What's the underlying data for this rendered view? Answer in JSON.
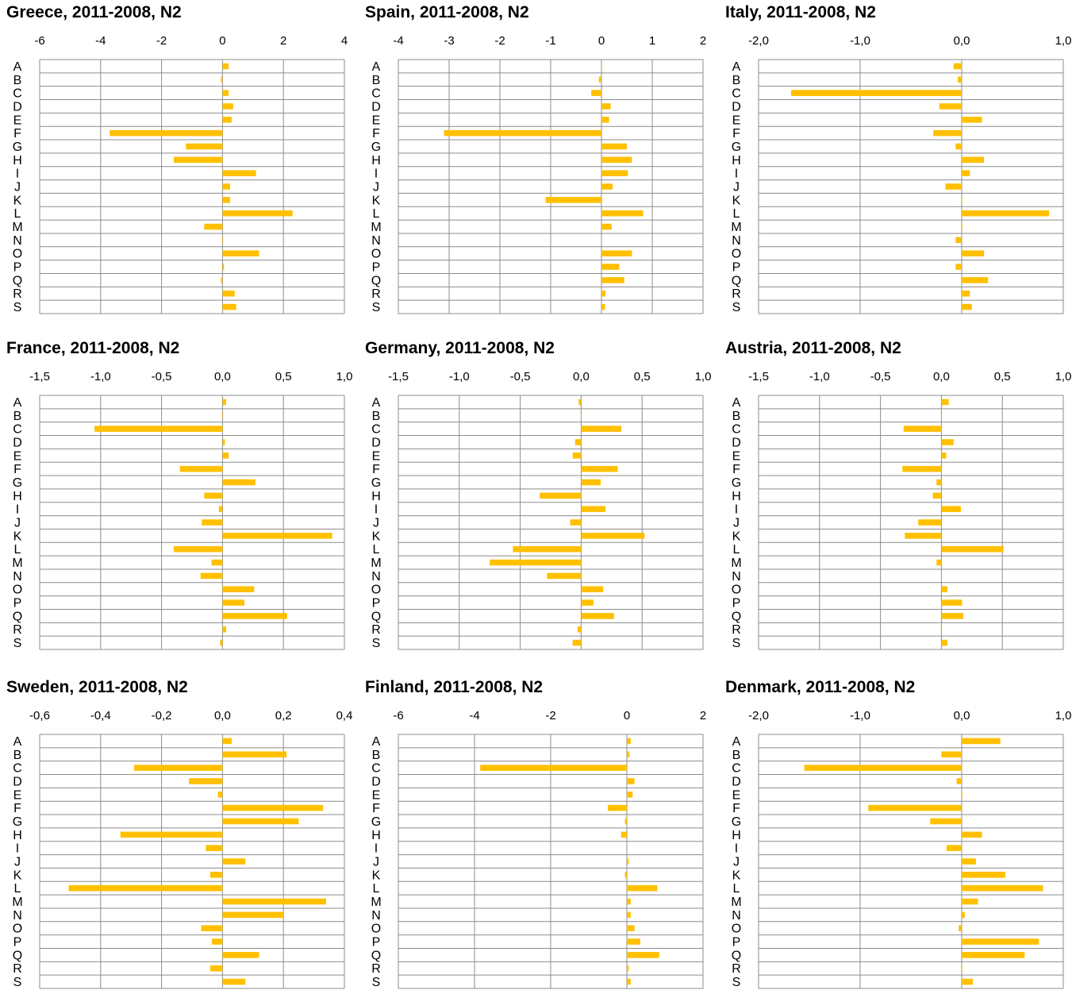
{
  "chart_data": [
    {
      "type": "bar",
      "orientation": "horizontal",
      "title": "Greece, 2011-2008, N2",
      "categories": [
        "A",
        "B",
        "C",
        "D",
        "E",
        "F",
        "G",
        "H",
        "I",
        "J",
        "K",
        "L",
        "M",
        "N",
        "O",
        "P",
        "Q",
        "R",
        "S"
      ],
      "values": [
        0.2,
        -0.05,
        0.2,
        0.35,
        0.3,
        -3.7,
        -1.2,
        -1.6,
        1.1,
        0.25,
        0.25,
        2.3,
        -0.6,
        0.0,
        1.2,
        0.05,
        -0.05,
        0.4,
        0.45
      ],
      "xlim": [
        -6,
        4
      ],
      "xticks": [
        "-6",
        "-4",
        "-2",
        "0",
        "2",
        "4"
      ],
      "color": "#FFC000"
    },
    {
      "type": "bar",
      "orientation": "horizontal",
      "title": "Spain, 2011-2008, N2",
      "categories": [
        "A",
        "B",
        "C",
        "D",
        "E",
        "F",
        "G",
        "H",
        "I",
        "J",
        "K",
        "L",
        "M",
        "N",
        "O",
        "P",
        "Q",
        "R",
        "S"
      ],
      "values": [
        0.0,
        -0.05,
        -0.2,
        0.18,
        0.15,
        -3.1,
        0.5,
        0.6,
        0.52,
        0.22,
        -1.1,
        0.82,
        0.2,
        0.0,
        0.6,
        0.35,
        0.45,
        0.08,
        0.07
      ],
      "xlim": [
        -4,
        2
      ],
      "xticks": [
        "-4",
        "-3",
        "-2",
        "-1",
        "0",
        "1",
        "2"
      ],
      "color": "#FFC000"
    },
    {
      "type": "bar",
      "orientation": "horizontal",
      "title": "Italy, 2011-2008, N2",
      "categories": [
        "A",
        "B",
        "C",
        "D",
        "E",
        "F",
        "G",
        "H",
        "I",
        "J",
        "K",
        "L",
        "M",
        "N",
        "O",
        "P",
        "Q",
        "R",
        "S"
      ],
      "values": [
        -0.08,
        -0.04,
        -1.68,
        -0.22,
        0.2,
        -0.28,
        -0.06,
        0.22,
        0.08,
        -0.16,
        0.0,
        0.86,
        0.0,
        -0.06,
        0.22,
        -0.06,
        0.26,
        0.08,
        0.1
      ],
      "xlim": [
        -2,
        1
      ],
      "xticks": [
        "-2,0",
        "-1,0",
        "0,0",
        "1,0"
      ],
      "color": "#FFC000"
    },
    {
      "type": "bar",
      "orientation": "horizontal",
      "title": "France, 2011-2008, N2",
      "categories": [
        "A",
        "B",
        "C",
        "D",
        "E",
        "F",
        "G",
        "H",
        "I",
        "J",
        "K",
        "L",
        "M",
        "N",
        "O",
        "P",
        "Q",
        "R",
        "S"
      ],
      "values": [
        0.03,
        0.0,
        -1.05,
        0.02,
        0.05,
        -0.35,
        0.27,
        -0.15,
        -0.03,
        -0.17,
        0.9,
        -0.4,
        -0.09,
        -0.18,
        0.26,
        0.18,
        0.53,
        0.03,
        -0.02
      ],
      "xlim": [
        -1.5,
        1
      ],
      "xticks": [
        "-1,5",
        "-1,0",
        "-0,5",
        "0,0",
        "0,5",
        "1,0"
      ],
      "color": "#FFC000"
    },
    {
      "type": "bar",
      "orientation": "horizontal",
      "title": "Germany, 2011-2008, N2",
      "categories": [
        "A",
        "B",
        "C",
        "D",
        "E",
        "F",
        "G",
        "H",
        "I",
        "J",
        "K",
        "L",
        "M",
        "N",
        "O",
        "P",
        "Q",
        "R",
        "S"
      ],
      "values": [
        -0.02,
        0.0,
        0.33,
        -0.05,
        -0.07,
        0.3,
        0.16,
        -0.34,
        0.2,
        -0.09,
        0.52,
        -0.56,
        -0.75,
        -0.28,
        0.18,
        0.1,
        0.27,
        -0.03,
        -0.07
      ],
      "xlim": [
        -1.5,
        1
      ],
      "xticks": [
        "-1,5",
        "-1,0",
        "-0,5",
        "0,0",
        "0,5",
        "1,0"
      ],
      "color": "#FFC000"
    },
    {
      "type": "bar",
      "orientation": "horizontal",
      "title": "Austria, 2011-2008, N2",
      "categories": [
        "A",
        "B",
        "C",
        "D",
        "E",
        "F",
        "G",
        "H",
        "I",
        "J",
        "K",
        "L",
        "M",
        "N",
        "O",
        "P",
        "Q",
        "R",
        "S"
      ],
      "values": [
        0.06,
        0.0,
        -0.31,
        0.1,
        0.04,
        -0.32,
        -0.04,
        -0.07,
        0.16,
        -0.19,
        -0.3,
        0.51,
        -0.04,
        0.0,
        0.05,
        0.17,
        0.18,
        0.0,
        0.05
      ],
      "xlim": [
        -1.5,
        1
      ],
      "xticks": [
        "-1,5",
        "-1,0",
        "-0,5",
        "0,0",
        "0,5",
        "1,0"
      ],
      "color": "#FFC000"
    },
    {
      "type": "bar",
      "orientation": "horizontal",
      "title": "Sweden, 2011-2008, N2",
      "categories": [
        "A",
        "B",
        "C",
        "D",
        "E",
        "F",
        "G",
        "H",
        "I",
        "J",
        "K",
        "L",
        "M",
        "N",
        "O",
        "P",
        "Q",
        "R",
        "S"
      ],
      "values": [
        0.03,
        0.21,
        -0.29,
        -0.11,
        -0.015,
        0.33,
        0.25,
        -0.335,
        -0.055,
        0.075,
        -0.04,
        -0.505,
        0.34,
        0.2,
        -0.07,
        -0.035,
        0.12,
        -0.04,
        0.075
      ],
      "xlim": [
        -0.6,
        0.4
      ],
      "xticks": [
        "-0,6",
        "-0,4",
        "-0,2",
        "0,0",
        "0,2",
        "0,4"
      ],
      "color": "#FFC000"
    },
    {
      "type": "bar",
      "orientation": "horizontal",
      "title": "Finland, 2011-2008, N2",
      "categories": [
        "A",
        "B",
        "C",
        "D",
        "E",
        "F",
        "G",
        "H",
        "I",
        "J",
        "K",
        "L",
        "M",
        "N",
        "O",
        "P",
        "Q",
        "R",
        "S"
      ],
      "values": [
        0.1,
        0.07,
        -3.85,
        0.2,
        0.15,
        -0.5,
        -0.05,
        -0.15,
        0.0,
        0.05,
        -0.05,
        0.8,
        0.1,
        0.1,
        0.2,
        0.35,
        0.85,
        0.05,
        0.1
      ],
      "xlim": [
        -6,
        2
      ],
      "xticks": [
        "-6",
        "-4",
        "-2",
        "0",
        "2"
      ],
      "color": "#FFC000"
    },
    {
      "type": "bar",
      "orientation": "horizontal",
      "title": "Denmark, 2011-2008, N2",
      "categories": [
        "A",
        "B",
        "C",
        "D",
        "E",
        "F",
        "G",
        "H",
        "I",
        "J",
        "K",
        "L",
        "M",
        "N",
        "O",
        "P",
        "Q",
        "R",
        "S"
      ],
      "values": [
        0.38,
        -0.2,
        -1.55,
        -0.05,
        0.0,
        -0.92,
        -0.31,
        0.2,
        -0.15,
        0.14,
        0.43,
        0.8,
        0.16,
        0.03,
        -0.03,
        0.76,
        0.62,
        0.0,
        0.11
      ],
      "xlim": [
        -2,
        1
      ],
      "xticks": [
        "-2,0",
        "-1,0",
        "0,0",
        "1,0"
      ],
      "color": "#FFC000"
    }
  ]
}
